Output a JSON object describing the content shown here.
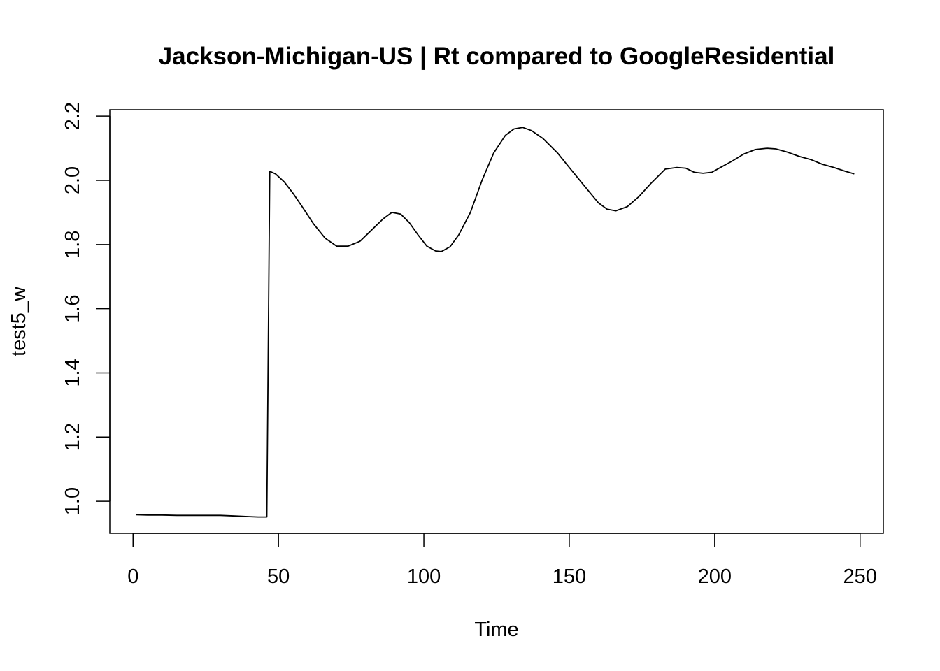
{
  "chart_data": {
    "type": "line",
    "title": "Jackson-Michigan-US | Rt compared to GoogleResidential",
    "xlabel": "Time",
    "ylabel": "test5_w",
    "xlim": [
      -8,
      258
    ],
    "ylim": [
      0.9,
      2.22
    ],
    "xticks": [
      0,
      50,
      100,
      150,
      200,
      250
    ],
    "yticks": [
      1.0,
      1.2,
      1.4,
      1.6,
      1.8,
      2.0,
      2.2
    ],
    "grid": false,
    "series": [
      {
        "x": [
          1,
          5,
          10,
          15,
          20,
          25,
          30,
          35,
          40,
          43,
          45,
          46,
          47,
          49,
          52,
          55,
          58,
          62,
          66,
          70,
          74,
          78,
          82,
          86,
          89,
          92,
          95,
          98,
          101,
          104,
          106,
          109,
          112,
          116,
          120,
          124,
          128,
          131,
          134,
          137,
          141,
          146,
          150,
          155,
          160,
          163,
          166,
          170,
          174,
          178,
          183,
          187,
          190,
          193,
          196,
          199,
          202,
          206,
          210,
          214,
          218,
          221,
          225,
          229,
          233,
          237,
          241,
          245,
          248
        ],
        "y": [
          0.958,
          0.957,
          0.957,
          0.956,
          0.956,
          0.956,
          0.956,
          0.954,
          0.952,
          0.951,
          0.951,
          0.951,
          2.028,
          2.02,
          1.995,
          1.96,
          1.92,
          1.865,
          1.82,
          1.795,
          1.795,
          1.81,
          1.845,
          1.88,
          1.9,
          1.895,
          1.868,
          1.83,
          1.795,
          1.78,
          1.778,
          1.793,
          1.83,
          1.9,
          2.0,
          2.085,
          2.14,
          2.16,
          2.165,
          2.155,
          2.13,
          2.085,
          2.04,
          1.985,
          1.93,
          1.91,
          1.905,
          1.918,
          1.95,
          1.99,
          2.035,
          2.04,
          2.038,
          2.025,
          2.022,
          2.025,
          2.04,
          2.06,
          2.082,
          2.096,
          2.1,
          2.098,
          2.088,
          2.075,
          2.065,
          2.05,
          2.04,
          2.028,
          2.02
        ]
      }
    ],
    "colors": {
      "line": "#000000",
      "axis": "#000000",
      "background": "#ffffff"
    }
  }
}
